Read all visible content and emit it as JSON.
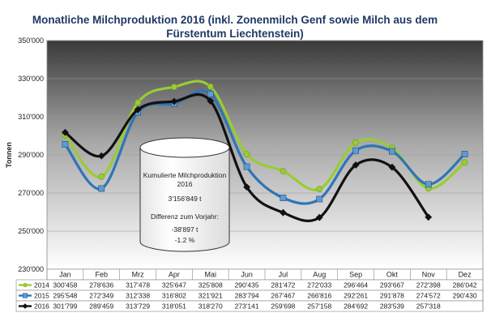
{
  "chart_data": {
    "type": "line",
    "title_line1": "Monatliche Milchproduktion 2016 (inkl. Zonenmilch Genf sowie Milch aus dem",
    "title_line2": "Fürstentum Liechtenstein)",
    "ylabel": "Tonnen",
    "ylim": [
      230000,
      350000
    ],
    "yticks": [
      "230'000",
      "250'000",
      "270'000",
      "290'000",
      "310'000",
      "330'000",
      "350'000"
    ],
    "categories": [
      "Jan",
      "Feb",
      "Mrz",
      "Apr",
      "Mai",
      "Jun",
      "Jul",
      "Aug",
      "Sep",
      "Okt",
      "Nov",
      "Dez"
    ],
    "series": [
      {
        "name": "2014",
        "color": "#99cc33",
        "values": [
          300458,
          278636,
          317478,
          325647,
          325808,
          290435,
          281472,
          272033,
          296464,
          293667,
          272398,
          286042
        ],
        "labels": [
          "300'458",
          "278'636",
          "317'478",
          "325'647",
          "325'808",
          "290'435",
          "281'472",
          "272'033",
          "296'464",
          "293'667",
          "272'398",
          "286'042"
        ]
      },
      {
        "name": "2015",
        "color": "#2e75b6",
        "values": [
          295548,
          272349,
          312338,
          316802,
          321921,
          283794,
          267467,
          266816,
          292261,
          291878,
          274572,
          290430
        ],
        "labels": [
          "295'548",
          "272'349",
          "312'338",
          "316'802",
          "321'921",
          "283'794",
          "267'467",
          "266'816",
          "292'261",
          "291'878",
          "274'572",
          "290'430"
        ]
      },
      {
        "name": "2016",
        "color": "#111111",
        "values": [
          301799,
          289459,
          313729,
          318051,
          318270,
          273141,
          259698,
          257158,
          284692,
          283539,
          257318,
          null
        ],
        "labels": [
          "301'799",
          "289'459",
          "313'729",
          "318'051",
          "318'270",
          "273'141",
          "259'698",
          "257'158",
          "284'692",
          "283'539",
          "257'318",
          ""
        ]
      }
    ],
    "annotation": {
      "heading_line1": "Kumulierte Milchproduktion",
      "heading_line2": "2016",
      "total": "3'156'849 t",
      "diff_label": "Differenz zum Vorjahr:",
      "diff_abs": "-38'897 t",
      "diff_pct": "-1.2 %"
    }
  }
}
